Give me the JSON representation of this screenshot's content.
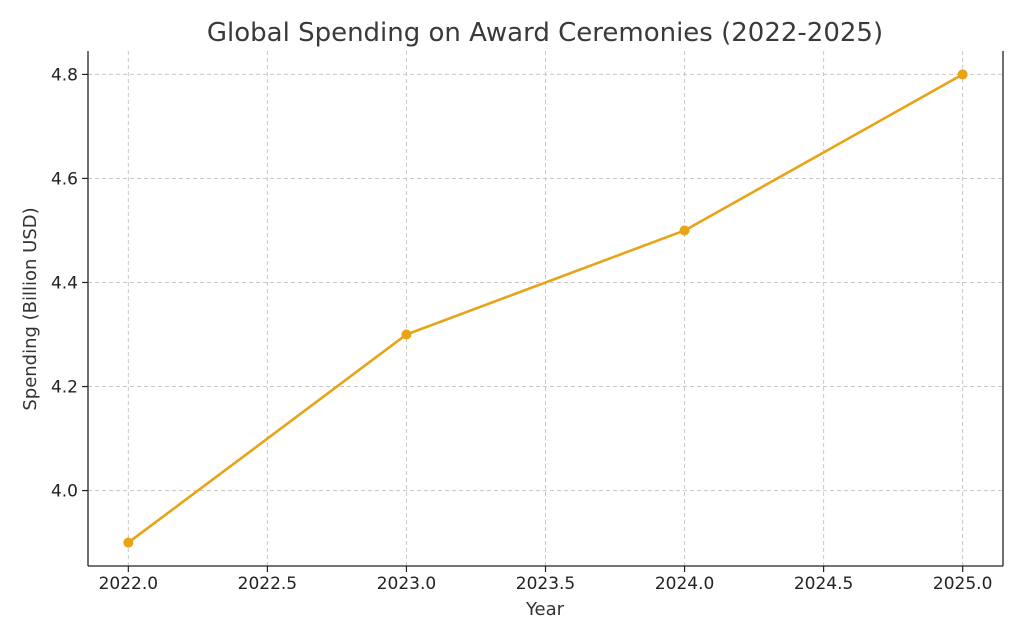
{
  "chart_data": {
    "type": "line",
    "title": "Global Spending on Award Ceremonies (2022-2025)",
    "xlabel": "Year",
    "ylabel": "Spending (Billion USD)",
    "x": [
      2022,
      2023,
      2024,
      2025
    ],
    "series": [
      {
        "name": "",
        "values": [
          3.9,
          4.3,
          4.5,
          4.8
        ],
        "color": "#e8a317"
      }
    ],
    "x_ticks": [
      2022.0,
      2022.5,
      2023.0,
      2023.5,
      2024.0,
      2024.5,
      2025.0
    ],
    "x_tick_labels": [
      "2022.0",
      "2022.5",
      "2023.0",
      "2023.5",
      "2024.0",
      "2024.5",
      "2025.0"
    ],
    "y_ticks": [
      4.0,
      4.2,
      4.4,
      4.6,
      4.8
    ],
    "y_tick_labels": [
      "4.0",
      "4.2",
      "4.4",
      "4.6",
      "4.8"
    ],
    "xlim": [
      2021.855,
      2025.145
    ],
    "ylim": [
      3.855,
      4.845
    ],
    "grid": true,
    "markers": true
  }
}
